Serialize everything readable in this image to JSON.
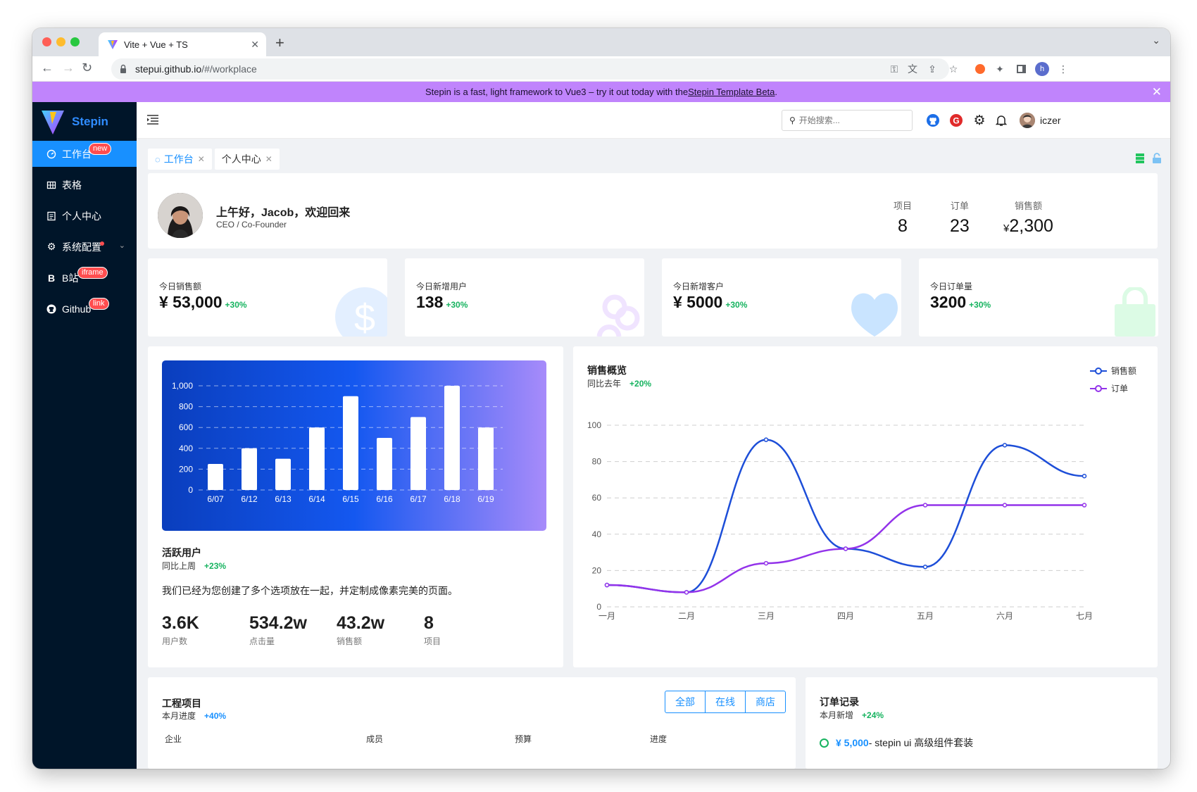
{
  "browser": {
    "tab_title": "Vite + Vue + TS",
    "url_host": "stepui.github.io",
    "url_path": "/#/workplace"
  },
  "banner": {
    "text": "Stepin is a fast, light framework to Vue3 – try it out today with the ",
    "link": "Stepin Template Beta",
    "suffix": "."
  },
  "sidebar": {
    "brand": "Stepin",
    "items": [
      {
        "label": "工作台",
        "badge": "new",
        "active": true,
        "icon": "dashboard-icon"
      },
      {
        "label": "表格",
        "badge": "",
        "icon": "table-icon"
      },
      {
        "label": "个人中心",
        "badge": "",
        "icon": "profile-icon"
      },
      {
        "label": "系统配置",
        "badge": "",
        "dot": true,
        "icon": "gear-icon"
      },
      {
        "label": "B站",
        "badge": "iframe",
        "icon": "bilibili-icon"
      },
      {
        "label": "Github",
        "badge": "link",
        "icon": "github-icon"
      }
    ]
  },
  "header": {
    "search_placeholder": "开始搜索...",
    "username": "iczer"
  },
  "page_tabs": [
    {
      "label": "工作台",
      "active": true
    },
    {
      "label": "个人中心",
      "active": false
    }
  ],
  "welcome": {
    "greeting": "上午好，Jacob，欢迎回来",
    "role": "CEO / Co-Founder",
    "stats": [
      {
        "label": "项目",
        "value": "8"
      },
      {
        "label": "订单",
        "value": "23"
      },
      {
        "label": "销售额",
        "prefix": "¥",
        "value": "2,300"
      }
    ]
  },
  "stats": [
    {
      "label": "今日销售额",
      "value": "¥ 53,000",
      "growth": "+30%",
      "color": "#e6f0ff"
    },
    {
      "label": "今日新增用户",
      "value": "138",
      "growth": "+30%",
      "color": "#f3e8ff"
    },
    {
      "label": "今日新增客户",
      "value": "¥ 5000",
      "growth": "+30%",
      "color": "#cfe6ff"
    },
    {
      "label": "今日订单量",
      "value": "3200",
      "growth": "+30%",
      "color": "#dcfce7"
    }
  ],
  "active_users": {
    "title": "活跃用户",
    "sub_label": "同比上周",
    "sub_value": "+23%",
    "desc": "我们已经为您创建了多个选项放在一起，并定制成像素完美的页面。",
    "stats": [
      {
        "value": "3.6K",
        "label": "用户数"
      },
      {
        "value": "534.2w",
        "label": "点击量"
      },
      {
        "value": "43.2w",
        "label": "销售额"
      },
      {
        "value": "8",
        "label": "项目"
      }
    ]
  },
  "sales": {
    "title": "销售概览",
    "sub_label": "同比去年",
    "sub_value": "+20%",
    "legend": [
      "销售额",
      "订单"
    ]
  },
  "projects": {
    "title": "工程项目",
    "sub_label": "本月进度",
    "sub_value": "+40%",
    "filters": [
      "全部",
      "在线",
      "商店"
    ],
    "columns": [
      "企业",
      "成员",
      "预算",
      "进度"
    ]
  },
  "orders": {
    "title": "订单记录",
    "sub_label": "本月新增",
    "sub_value": "+24%",
    "first_amount": "¥ 5,000",
    "first_text": " - stepin ui 高级组件套装"
  },
  "chart_data": [
    {
      "type": "bar",
      "categories": [
        "6/07",
        "6/12",
        "6/13",
        "6/14",
        "6/15",
        "6/16",
        "6/17",
        "6/18",
        "6/19"
      ],
      "values": [
        250,
        400,
        300,
        600,
        900,
        500,
        700,
        1000,
        600
      ],
      "ylim": [
        0,
        1000
      ],
      "yticks": [
        0,
        200,
        400,
        600,
        800,
        1000
      ],
      "ytick_labels": [
        "0",
        "200",
        "400",
        "600",
        "800",
        "1,000"
      ],
      "grid": true
    },
    {
      "type": "line",
      "categories": [
        "一月",
        "二月",
        "三月",
        "四月",
        "五月",
        "六月",
        "七月"
      ],
      "series": [
        {
          "name": "销售额",
          "values": [
            12,
            8,
            92,
            32,
            22,
            89,
            72
          ],
          "color": "#1d4ed8"
        },
        {
          "name": "订单",
          "values": [
            12,
            8,
            24,
            32,
            56,
            56,
            56
          ],
          "color": "#9333ea"
        }
      ],
      "ylim": [
        0,
        100
      ],
      "yticks": [
        0,
        20,
        40,
        60,
        80,
        100
      ],
      "grid": true,
      "smooth": true,
      "legend": "top-right"
    }
  ]
}
